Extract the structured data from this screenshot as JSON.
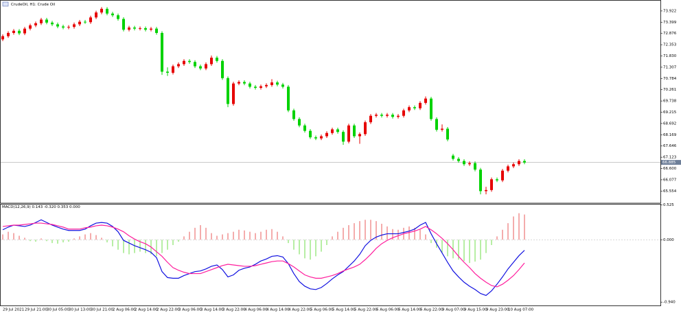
{
  "chart_data": [
    {
      "type": "candlestick",
      "title": "CrudeOil, H1: Crude Oil",
      "categories": [
        "29 Jul 2021",
        null,
        null,
        null,
        "29 Jul 21:00",
        null,
        null,
        null,
        "30 Jul 05:00",
        null,
        null,
        null,
        "30 Jul 13:00",
        null,
        null,
        null,
        "30 Jul 21:00",
        null,
        null,
        null,
        "2 Aug 06:00",
        null,
        null,
        null,
        "2 Aug 14:00",
        null,
        null,
        null,
        "2 Aug 22:00",
        null,
        null,
        null,
        "3 Aug 06:00",
        null,
        null,
        null,
        "3 Aug 14:00",
        null,
        null,
        null,
        "3 Aug 22:00",
        null,
        null,
        null,
        "4 Aug 06:00",
        null,
        null,
        null,
        "4 Aug 14:00",
        null,
        null,
        null,
        "4 Aug 22:00",
        null,
        null,
        null,
        "5 Aug 06:00",
        null,
        null,
        null,
        "5 Aug 14:00",
        null,
        null,
        null,
        "5 Aug 22:00",
        null,
        null,
        null,
        "6 Aug 06:00",
        null,
        null,
        null,
        "6 Aug 14:00",
        null,
        null,
        null,
        "6 Aug 22:00",
        null,
        null,
        null,
        "9 Aug 07:00",
        null,
        null,
        null,
        "9 Aug 15:00",
        null,
        null,
        null,
        "9 Aug 23:00",
        null,
        null,
        null,
        "10 Aug 07:00",
        null,
        null,
        null
      ],
      "open": [
        72.6,
        72.75,
        72.9,
        73.0,
        72.88,
        73.1,
        73.25,
        73.35,
        73.52,
        73.38,
        73.3,
        73.2,
        73.15,
        73.18,
        73.3,
        73.42,
        73.4,
        73.62,
        73.85,
        74.02,
        73.8,
        73.72,
        73.55,
        73.05,
        73.15,
        73.1,
        73.12,
        73.05,
        73.1,
        72.9,
        71.1,
        71.05,
        71.35,
        71.45,
        71.6,
        71.55,
        71.35,
        71.25,
        71.45,
        71.75,
        71.6,
        70.8,
        69.6,
        70.55,
        70.62,
        70.55,
        70.4,
        70.35,
        70.42,
        70.48,
        70.6,
        70.5,
        70.4,
        69.3,
        68.9,
        68.6,
        68.35,
        68.05,
        68.0,
        68.1,
        68.25,
        68.42,
        68.3,
        67.85,
        68.6,
        68.1,
        68.2,
        68.75,
        69.05,
        69.1,
        69.05,
        69.1,
        69.0,
        69.05,
        69.3,
        69.45,
        69.4,
        69.65,
        69.85,
        68.9,
        68.4,
        68.45,
        67.2,
        67.05,
        66.95,
        66.8,
        66.85,
        66.55,
        65.55,
        65.6,
        66.1,
        66.05,
        66.5,
        66.7,
        66.8,
        66.95
      ],
      "high": [
        72.83,
        72.98,
        73.08,
        73.08,
        73.18,
        73.33,
        73.43,
        73.6,
        73.6,
        73.46,
        73.38,
        73.28,
        73.26,
        73.38,
        73.5,
        73.5,
        73.7,
        73.93,
        74.1,
        74.1,
        73.88,
        73.8,
        73.63,
        73.23,
        73.23,
        73.2,
        73.2,
        73.18,
        73.18,
        72.98,
        71.3,
        71.43,
        71.53,
        71.68,
        71.68,
        71.63,
        71.43,
        71.53,
        71.85,
        71.83,
        71.68,
        70.88,
        70.63,
        70.7,
        70.7,
        70.63,
        70.48,
        70.5,
        70.56,
        70.75,
        70.68,
        70.58,
        70.48,
        69.38,
        68.98,
        68.68,
        68.43,
        68.13,
        68.18,
        68.33,
        68.5,
        68.5,
        68.38,
        68.68,
        68.68,
        68.28,
        68.83,
        69.13,
        69.18,
        69.18,
        69.18,
        69.18,
        69.13,
        69.38,
        69.53,
        69.53,
        69.73,
        69.95,
        69.93,
        68.98,
        68.65,
        68.53,
        67.28,
        67.13,
        67.03,
        66.93,
        66.93,
        66.63,
        65.75,
        66.18,
        66.18,
        66.58,
        66.78,
        66.88,
        67.03,
        67.03
      ],
      "low": [
        72.52,
        72.67,
        72.82,
        72.8,
        72.8,
        73.02,
        73.17,
        73.27,
        73.3,
        73.22,
        73.12,
        73.07,
        73.07,
        73.1,
        73.22,
        73.32,
        73.32,
        73.54,
        73.77,
        73.72,
        73.64,
        73.47,
        72.97,
        72.97,
        73.02,
        73.02,
        72.97,
        72.97,
        72.82,
        70.95,
        70.9,
        70.97,
        71.27,
        71.37,
        71.47,
        71.27,
        71.17,
        71.17,
        71.37,
        71.52,
        70.72,
        69.45,
        69.52,
        70.47,
        70.47,
        70.32,
        70.27,
        70.27,
        70.34,
        70.4,
        70.42,
        70.32,
        69.22,
        68.82,
        68.52,
        68.27,
        67.97,
        67.92,
        67.92,
        68.02,
        68.17,
        68.22,
        67.7,
        67.77,
        68.02,
        67.75,
        68.12,
        68.67,
        68.97,
        68.97,
        68.97,
        68.92,
        68.92,
        68.97,
        69.22,
        69.32,
        69.32,
        69.57,
        68.82,
        68.32,
        68.32,
        67.87,
        66.97,
        66.87,
        66.72,
        66.72,
        66.47,
        65.4,
        65.4,
        65.52,
        65.97,
        65.97,
        66.42,
        66.62,
        66.72,
        66.8
      ],
      "close": [
        72.75,
        72.9,
        73.0,
        72.88,
        73.1,
        73.25,
        73.35,
        73.52,
        73.38,
        73.3,
        73.2,
        73.15,
        73.18,
        73.3,
        73.42,
        73.4,
        73.62,
        73.85,
        74.02,
        73.8,
        73.72,
        73.55,
        73.05,
        73.15,
        73.1,
        73.12,
        73.05,
        73.1,
        72.9,
        71.1,
        71.05,
        71.35,
        71.45,
        71.6,
        71.55,
        71.35,
        71.25,
        71.45,
        71.75,
        71.6,
        70.8,
        69.6,
        70.55,
        70.62,
        70.55,
        70.4,
        70.35,
        70.42,
        70.48,
        70.6,
        70.5,
        70.4,
        69.3,
        68.9,
        68.6,
        68.35,
        68.05,
        68.0,
        68.1,
        68.25,
        68.42,
        68.3,
        67.85,
        68.6,
        68.1,
        68.2,
        68.75,
        69.05,
        69.1,
        69.05,
        69.1,
        69.0,
        69.05,
        69.3,
        69.45,
        69.4,
        69.65,
        69.85,
        68.9,
        68.4,
        68.45,
        67.95,
        67.05,
        66.95,
        66.8,
        66.85,
        66.55,
        65.55,
        65.6,
        66.1,
        66.05,
        66.5,
        66.7,
        66.8,
        66.95,
        66.88
      ],
      "up_color": "#e60000",
      "down_color": "#00d200",
      "ylim": [
        64.99,
        74.43
      ],
      "yticks": [
        73.922,
        73.399,
        72.876,
        72.353,
        {
          "value": 71.83,
          "label": "71.830"
        },
        71.307,
        70.784,
        70.261,
        69.738,
        69.215,
        68.692,
        68.169,
        67.646,
        67.123,
        {
          "value": 66.6,
          "label": "66.600"
        },
        66.077,
        65.554
      ],
      "last_price": 66.885
    },
    {
      "type": "macd",
      "title": "MACD(12,26,9) 0.143 -0.320 0.353 0.000",
      "histogram": {
        "up_color": "#e85a5a",
        "down_color": "#6fdc4a",
        "values": [
          0.08,
          0.12,
          0.1,
          0.06,
          0.03,
          -0.02,
          -0.03,
          0.02,
          -0.02,
          -0.05,
          -0.06,
          -0.04,
          -0.03,
          0.02,
          0.05,
          0.08,
          0.1,
          0.07,
          0.03,
          -0.04,
          -0.1,
          -0.15,
          -0.2,
          -0.22,
          -0.2,
          -0.18,
          -0.2,
          -0.22,
          -0.25,
          -0.2,
          -0.15,
          -0.08,
          -0.03,
          0.05,
          0.12,
          0.18,
          0.22,
          0.18,
          0.1,
          0.06,
          0.08,
          0.1,
          0.12,
          0.15,
          0.14,
          0.12,
          0.1,
          0.12,
          0.15,
          0.16,
          0.12,
          0.05,
          -0.05,
          -0.15,
          -0.22,
          -0.28,
          -0.3,
          -0.25,
          -0.18,
          -0.08,
          0.05,
          0.12,
          0.18,
          0.22,
          0.25,
          0.28,
          0.3,
          0.3,
          0.28,
          0.24,
          0.2,
          0.16,
          0.15,
          0.18,
          0.2,
          0.18,
          0.15,
          0.08,
          -0.05,
          -0.12,
          -0.2,
          -0.25,
          -0.28,
          -0.3,
          -0.32,
          -0.35,
          -0.33,
          -0.3,
          -0.2,
          -0.08,
          0.05,
          0.15,
          0.25,
          0.35,
          0.4,
          0.38
        ]
      },
      "series": [
        {
          "color": "#1010e0",
          "values": [
            0.15,
            0.19,
            0.22,
            0.21,
            0.2,
            0.22,
            0.26,
            0.3,
            0.26,
            0.22,
            0.19,
            0.16,
            0.14,
            0.14,
            0.14,
            0.16,
            0.21,
            0.25,
            0.26,
            0.25,
            0.2,
            0.12,
            -0.01,
            -0.05,
            -0.09,
            -0.12,
            -0.15,
            -0.19,
            -0.27,
            -0.48,
            -0.57,
            -0.58,
            -0.58,
            -0.54,
            -0.51,
            -0.48,
            -0.47,
            -0.44,
            -0.4,
            -0.38,
            -0.45,
            -0.56,
            -0.53,
            -0.46,
            -0.43,
            -0.41,
            -0.37,
            -0.32,
            -0.29,
            -0.25,
            -0.24,
            -0.26,
            -0.36,
            -0.51,
            -0.63,
            -0.7,
            -0.74,
            -0.75,
            -0.72,
            -0.66,
            -0.59,
            -0.53,
            -0.48,
            -0.4,
            -0.32,
            -0.22,
            -0.09,
            -0.01,
            0.04,
            0.07,
            0.09,
            0.09,
            0.09,
            0.11,
            0.13,
            0.16,
            0.22,
            0.26,
            0.09,
            -0.06,
            -0.2,
            -0.34,
            -0.47,
            -0.56,
            -0.64,
            -0.7,
            -0.75,
            -0.81,
            -0.84,
            -0.77,
            -0.67,
            -0.56,
            -0.44,
            -0.34,
            -0.24,
            -0.16
          ]
        },
        {
          "color": "#ff1c9c",
          "values": [
            0.2,
            0.21,
            0.22,
            0.22,
            0.23,
            0.24,
            0.25,
            0.25,
            0.24,
            0.23,
            0.21,
            0.19,
            0.16,
            0.16,
            0.16,
            0.18,
            0.19,
            0.21,
            0.22,
            0.21,
            0.19,
            0.16,
            0.12,
            0.06,
            0.01,
            -0.03,
            -0.06,
            -0.11,
            -0.18,
            -0.25,
            -0.34,
            -0.42,
            -0.46,
            -0.49,
            -0.51,
            -0.51,
            -0.51,
            -0.48,
            -0.45,
            -0.42,
            -0.39,
            -0.37,
            -0.38,
            -0.39,
            -0.4,
            -0.4,
            -0.39,
            -0.37,
            -0.35,
            -0.33,
            -0.32,
            -0.32,
            -0.36,
            -0.41,
            -0.47,
            -0.53,
            -0.56,
            -0.58,
            -0.58,
            -0.56,
            -0.54,
            -0.51,
            -0.47,
            -0.44,
            -0.41,
            -0.37,
            -0.3,
            -0.22,
            -0.13,
            -0.06,
            -0.01,
            0.03,
            0.06,
            0.09,
            0.11,
            0.13,
            0.16,
            0.2,
            0.15,
            0.09,
            0.02,
            -0.06,
            -0.15,
            -0.25,
            -0.34,
            -0.42,
            -0.51,
            -0.58,
            -0.64,
            -0.69,
            -0.71,
            -0.67,
            -0.61,
            -0.54,
            -0.45,
            -0.35
          ]
        }
      ],
      "ylim": [
        -0.99,
        0.53
      ],
      "yticks": [
        0.525,
        {
          "value": 0,
          "label": "0.000"
        },
        {
          "value": -0.94,
          "label": "-0.940"
        }
      ]
    }
  ]
}
